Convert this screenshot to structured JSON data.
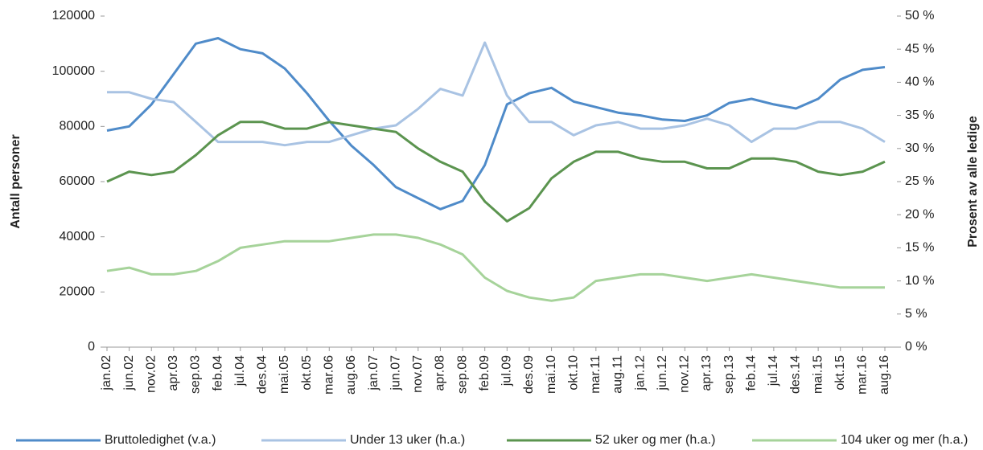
{
  "chart_data": {
    "type": "line",
    "y_label": "Antall personer",
    "y2_label": "Prosent av alle ledige",
    "categories": [
      "jan.02",
      "jun.02",
      "nov.02",
      "apr.03",
      "sep.03",
      "feb.04",
      "jul.04",
      "des.04",
      "mai.05",
      "okt.05",
      "mar.06",
      "aug.06",
      "jan.07",
      "jun.07",
      "nov.07",
      "apr.08",
      "sep.08",
      "feb.09",
      "jul.09",
      "des.09",
      "mai.10",
      "okt.10",
      "mar.11",
      "aug.11",
      "jan.12",
      "jun.12",
      "nov.12",
      "apr.13",
      "sep.13",
      "feb.14",
      "jul.14",
      "des.14",
      "mai.15",
      "okt.15",
      "mar.16",
      "aug.16"
    ],
    "ylim": [
      0,
      120000
    ],
    "yticks": [
      0,
      20000,
      40000,
      60000,
      80000,
      100000,
      120000
    ],
    "y2lim": [
      0,
      50
    ],
    "y2ticks": [
      {
        "value": 0,
        "label": "0 %"
      },
      {
        "value": 5,
        "label": "5 %"
      },
      {
        "value": 10,
        "label": "10 %"
      },
      {
        "value": 15,
        "label": "15 %"
      },
      {
        "value": 20,
        "label": "20 %"
      },
      {
        "value": 25,
        "label": "25 %"
      },
      {
        "value": 30,
        "label": "30 %"
      },
      {
        "value": 35,
        "label": "35 %"
      },
      {
        "value": 40,
        "label": "40 %"
      },
      {
        "value": 45,
        "label": "45 %"
      },
      {
        "value": 50,
        "label": "50 %"
      }
    ],
    "legend": "bottom",
    "series": [
      {
        "name": "Bruttoledighet (v.a.)",
        "color": "#4f8bc9",
        "values": [
          78500,
          80000,
          88000,
          99000,
          110000,
          112000,
          108000,
          106500,
          101000,
          92000,
          82000,
          73000,
          66000,
          58000,
          54000,
          50000,
          53000,
          66000,
          88000,
          92000,
          94000,
          89000,
          87000,
          85000,
          84000,
          82500,
          82000,
          84000,
          88500,
          90000,
          88000,
          86500,
          90000,
          97000,
          100500,
          101500
        ]
      },
      {
        "name": "Under 13 uker (h.a.)",
        "color": "#a9c3e3",
        "axis": "y2",
        "values": [
          38.5,
          38.5,
          37.5,
          37,
          34,
          31,
          31,
          31,
          30.5,
          31,
          31,
          32,
          33,
          33.5,
          36,
          39,
          38,
          46,
          38,
          34,
          34,
          32,
          33.5,
          34,
          33,
          33,
          33.5,
          34.5,
          33.5,
          31,
          33,
          33,
          34,
          34,
          33,
          31
        ]
      },
      {
        "name": "52 uker og mer (h.a.)",
        "color": "#5b944f",
        "axis": "y2",
        "values": [
          25,
          26.5,
          26,
          26.5,
          29,
          32,
          34,
          34,
          33,
          33,
          34,
          33.5,
          33,
          32.5,
          30,
          28,
          26.5,
          22,
          19,
          21,
          25.5,
          28,
          29.5,
          29.5,
          28.5,
          28,
          28,
          27,
          27,
          28.5,
          28.5,
          28,
          26.5,
          26,
          26.5,
          28
        ]
      },
      {
        "name": "104 uker og mer (h.a.)",
        "color": "#a6d39a",
        "axis": "y2",
        "values": [
          11.5,
          12,
          11,
          11,
          11.5,
          13,
          15,
          15.5,
          16,
          16,
          16,
          16.5,
          17,
          17,
          16.5,
          15.5,
          14,
          10.5,
          8.5,
          7.5,
          7,
          7.5,
          10,
          10.5,
          11,
          11,
          10.5,
          10,
          10.5,
          11,
          10.5,
          10,
          9.5,
          9,
          9,
          9
        ]
      }
    ]
  }
}
